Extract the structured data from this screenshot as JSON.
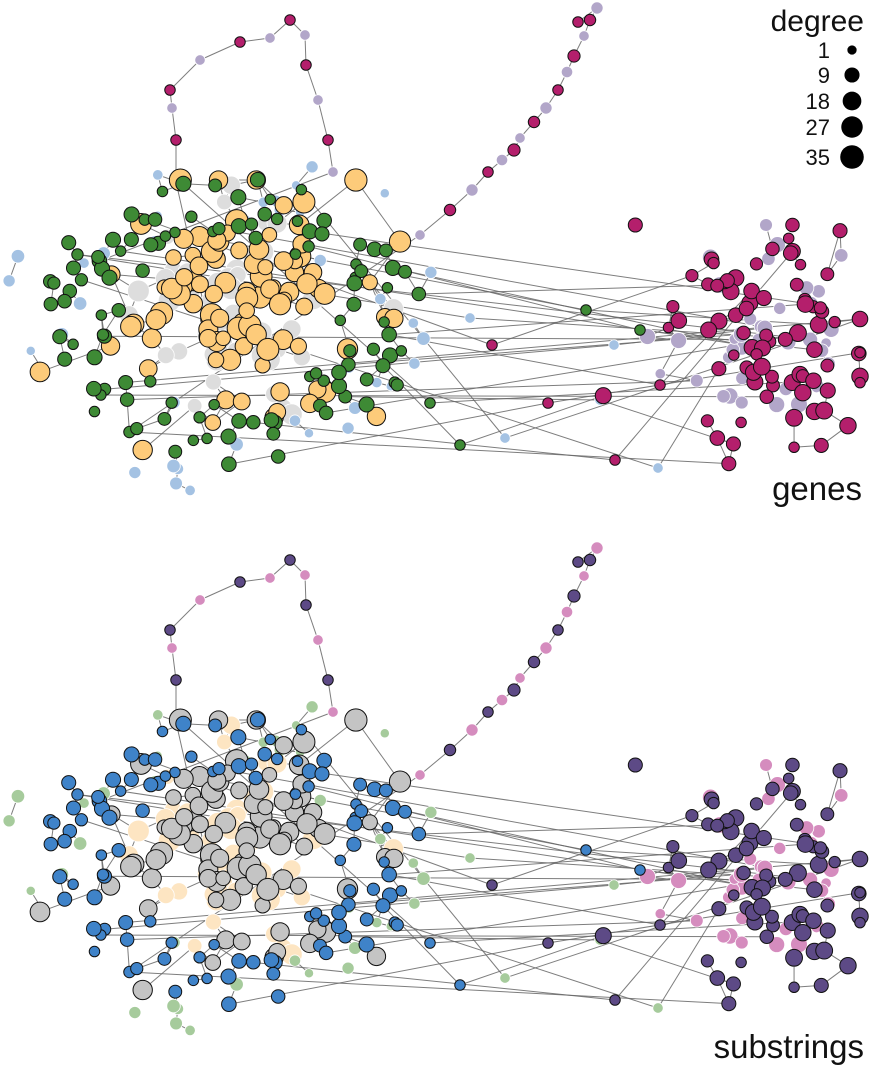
{
  "legend": {
    "title": "degree",
    "entries": [
      {
        "label": "1",
        "degree": 1
      },
      {
        "label": "9",
        "degree": 9
      },
      {
        "label": "18",
        "degree": 18
      },
      {
        "label": "27",
        "degree": 27
      },
      {
        "label": "35",
        "degree": 35
      }
    ]
  },
  "panels": [
    {
      "id": "genes",
      "label": "genes"
    },
    {
      "id": "substrings",
      "label": "substrings"
    }
  ],
  "palettes": {
    "genes": {
      "core": "#fdcb7a",
      "ring": "#3e8a35",
      "periph": "#a4c2e3",
      "branch": "#b41f6c",
      "branch_alt": "#b2a6c9",
      "bg": "#dddddd"
    },
    "substrings": {
      "core": "#c4c4c4",
      "ring": "#3f83c9",
      "periph": "#a6cb9c",
      "branch": "#5d4a86",
      "branch_alt": "#d58cbe",
      "bg": "#fde5c2"
    },
    "edge": "#666666",
    "node_outline": "#111111"
  }
}
